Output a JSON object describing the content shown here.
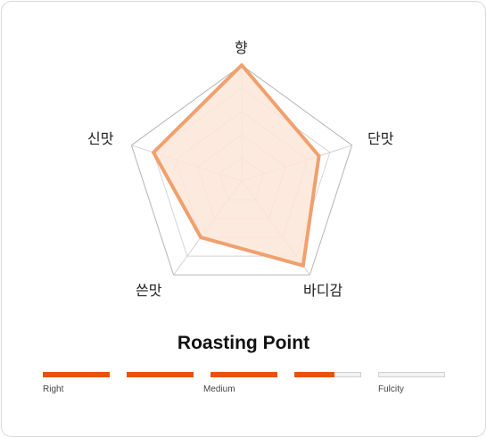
{
  "radar": {
    "axes": [
      "향",
      "단맛",
      "바디감",
      "쓴맛",
      "신맛"
    ],
    "max": 5,
    "levels": 5,
    "values": [
      5,
      3.5,
      4.5,
      3,
      4
    ],
    "colors": {
      "fill": "#fde6d8",
      "stroke": "#f0a06e",
      "grid": "#bdbdbd"
    }
  },
  "roasting": {
    "title": "Roasting Point",
    "segments": 5,
    "level": 3.6,
    "scale_labels": [
      "Right",
      "Medium",
      "Fulcity"
    ],
    "accent": "#e8520c"
  }
}
